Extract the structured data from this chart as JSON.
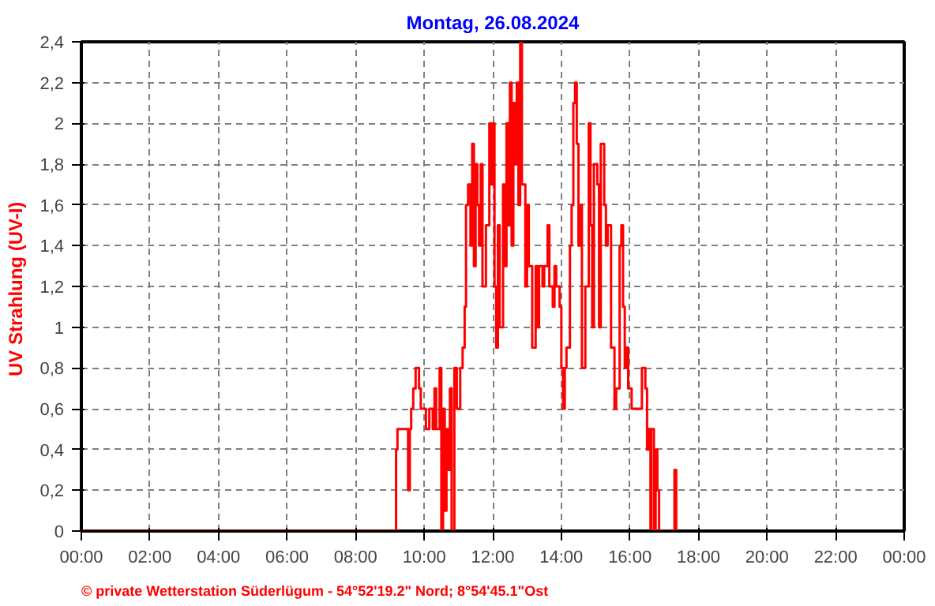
{
  "chart_data": {
    "type": "step",
    "title": "Montag, 26.08.2024",
    "ylabel": "UV Strahlung  (UV-I)",
    "annotations": [
      "© private Wetterstation Süderlügum  -  54°52'19.2\" Nord; 8°54'45.1\"Ost"
    ],
    "grid": true,
    "xlim": [
      0,
      24
    ],
    "ylim": [
      0,
      2.4
    ],
    "xticks": [
      {
        "value": 0,
        "label": "00:00"
      },
      {
        "value": 2,
        "label": "02:00"
      },
      {
        "value": 4,
        "label": "04:00"
      },
      {
        "value": 6,
        "label": "06:00"
      },
      {
        "value": 8,
        "label": "08:00"
      },
      {
        "value": 10,
        "label": "10:00"
      },
      {
        "value": 12,
        "label": "12:00"
      },
      {
        "value": 14,
        "label": "14:00"
      },
      {
        "value": 16,
        "label": "16:00"
      },
      {
        "value": 18,
        "label": "18:00"
      },
      {
        "value": 20,
        "label": "20:00"
      },
      {
        "value": 22,
        "label": "22:00"
      },
      {
        "value": 24,
        "label": "00:00"
      }
    ],
    "yticks": [
      0,
      {
        "value": 0.2,
        "label": "0,2"
      },
      {
        "value": 0.4,
        "label": "0,4"
      },
      {
        "value": 0.6,
        "label": "0,6"
      },
      {
        "value": 0.8,
        "label": "0,8"
      },
      1,
      {
        "value": 1.2,
        "label": "1,2"
      },
      {
        "value": 1.4,
        "label": "1,4"
      },
      {
        "value": 1.6,
        "label": "1,6"
      },
      {
        "value": 1.8,
        "label": "1,8"
      },
      2,
      {
        "value": 2.2,
        "label": "2,2"
      },
      {
        "value": 2.4,
        "label": "2,4"
      }
    ],
    "series": [
      {
        "color": "#ff0000",
        "x": [
          0,
          9.18,
          9.22,
          9.53,
          9.58,
          9.62,
          9.68,
          9.75,
          9.85,
          9.9,
          10.05,
          10.15,
          10.25,
          10.3,
          10.35,
          10.45,
          10.5,
          10.55,
          10.6,
          10.65,
          10.7,
          10.75,
          10.8,
          10.88,
          10.95,
          11.05,
          11.12,
          11.18,
          11.22,
          11.28,
          11.35,
          11.4,
          11.45,
          11.5,
          11.55,
          11.6,
          11.65,
          11.7,
          11.8,
          11.9,
          11.95,
          12.0,
          12.05,
          12.1,
          12.15,
          12.2,
          12.3,
          12.35,
          12.4,
          12.45,
          12.5,
          12.55,
          12.6,
          12.65,
          12.7,
          12.75,
          12.8,
          12.85,
          12.95,
          13.0,
          13.05,
          13.15,
          13.25,
          13.3,
          13.35,
          13.45,
          13.5,
          13.6,
          13.65,
          13.75,
          13.8,
          13.85,
          13.95,
          14.0,
          14.05,
          14.1,
          14.15,
          14.25,
          14.3,
          14.35,
          14.4,
          14.45,
          14.5,
          14.55,
          14.6,
          14.7,
          14.8,
          14.85,
          14.9,
          14.95,
          15.05,
          15.1,
          15.15,
          15.25,
          15.3,
          15.35,
          15.45,
          15.55,
          15.6,
          15.7,
          15.75,
          15.8,
          15.85,
          15.9,
          15.95,
          16.05,
          16.15,
          16.3,
          16.35,
          16.45,
          16.5,
          16.55,
          16.6,
          16.62,
          16.7,
          16.75,
          16.8,
          16.85,
          17.3,
          17.35
        ],
        "values": [
          0,
          0.4,
          0.5,
          0.2,
          0.5,
          0.6,
          0.7,
          0.8,
          0.7,
          0.6,
          0.5,
          0.6,
          0.5,
          0.7,
          0.5,
          0.8,
          0,
          0.6,
          0.1,
          0.5,
          0.3,
          0.7,
          0,
          0.8,
          0.6,
          0.8,
          0.9,
          1.1,
          1.6,
          1.7,
          1.4,
          1.9,
          1.3,
          1.8,
          1.6,
          1.4,
          1.8,
          1.2,
          1.5,
          2,
          1.7,
          2,
          1.2,
          0.9,
          1.5,
          1,
          1.7,
          1.3,
          2,
          1.5,
          2.2,
          1.4,
          2.1,
          1.8,
          2.2,
          1.6,
          2.4,
          1.7,
          1.2,
          1.6,
          1.3,
          0.9,
          1.3,
          1,
          1.3,
          1.2,
          1.3,
          1.5,
          1.2,
          1.1,
          1.3,
          1.2,
          1.1,
          0.8,
          0.6,
          0.8,
          0.9,
          1.4,
          1.6,
          2.1,
          2.2,
          1.9,
          1.4,
          1.6,
          0.8,
          1.2,
          2,
          1.5,
          1,
          1.8,
          1.7,
          1,
          1.9,
          1.6,
          1.4,
          1.5,
          0.9,
          0.6,
          0.7,
          1.4,
          1.5,
          1.1,
          0.8,
          0.9,
          0.7,
          0.6,
          0.6,
          0.6,
          0.8,
          0.7,
          0.4,
          0.5,
          0,
          0.5,
          0,
          0.4,
          0.2,
          0,
          0.3,
          0
        ]
      }
    ]
  }
}
